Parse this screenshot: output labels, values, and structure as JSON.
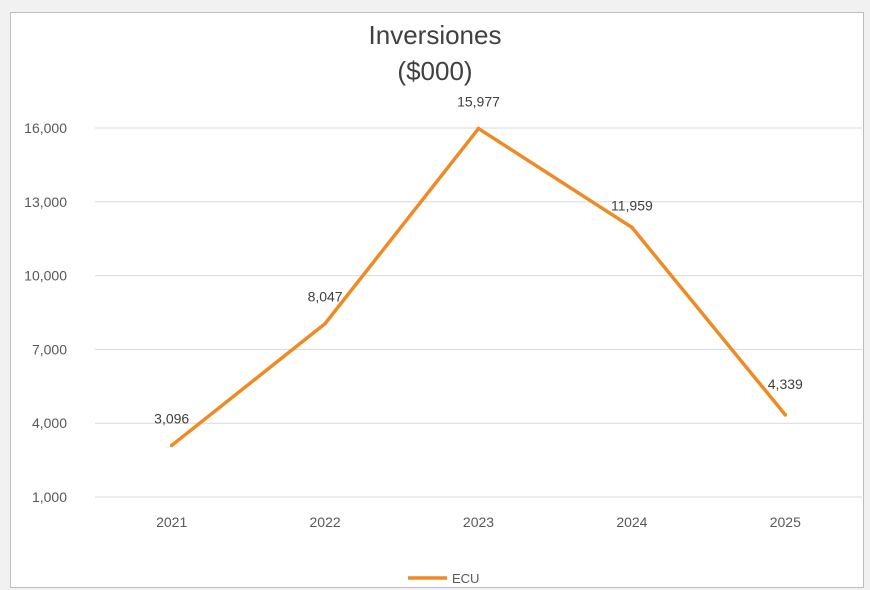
{
  "chart_data": {
    "type": "line",
    "title": "Inversiones",
    "subtitle": "($000)",
    "categories": [
      "2021",
      "2022",
      "2023",
      "2024",
      "2025"
    ],
    "series": [
      {
        "name": "ECU",
        "values": [
          3096,
          8047,
          15977,
          11959,
          4339
        ],
        "color": "#f08a24"
      }
    ],
    "data_labels": [
      "3,096",
      "8,047",
      "15,977",
      "11,959",
      "4,339"
    ],
    "y_ticks": [
      1000,
      4000,
      7000,
      10000,
      13000,
      16000
    ],
    "y_tick_labels": [
      "1,000",
      "4,000",
      "7,000",
      "10,000",
      "13,000",
      "16,000"
    ],
    "ylim": [
      1000,
      16000
    ],
    "grid": true,
    "legend": "bottom",
    "xlabel": "",
    "ylabel": ""
  }
}
